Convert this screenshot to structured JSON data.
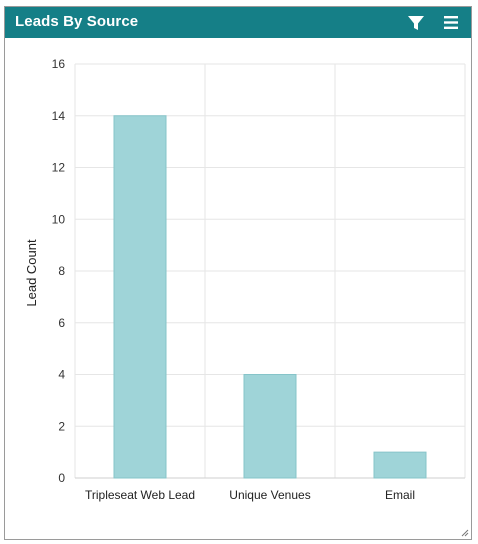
{
  "widget": {
    "title": "Leads By Source",
    "icons": {
      "filter": "filter-icon",
      "menu": "menu-icon",
      "resize": "resize-handle-icon"
    },
    "colors": {
      "header": "#157f87",
      "bar": "#9fd4d8",
      "bar_stroke": "#86c4c9",
      "grid": "#e6e6e6"
    }
  },
  "chart_data": {
    "type": "bar",
    "title": "",
    "xlabel": "",
    "ylabel": "Lead Count",
    "categories": [
      "Tripleseat Web Lead",
      "Unique Venues",
      "Email"
    ],
    "values": [
      14,
      4,
      1
    ],
    "ylim": [
      0,
      16
    ],
    "yticks": [
      0,
      2,
      4,
      6,
      8,
      10,
      12,
      14,
      16
    ],
    "grid": true,
    "legend": "none"
  }
}
